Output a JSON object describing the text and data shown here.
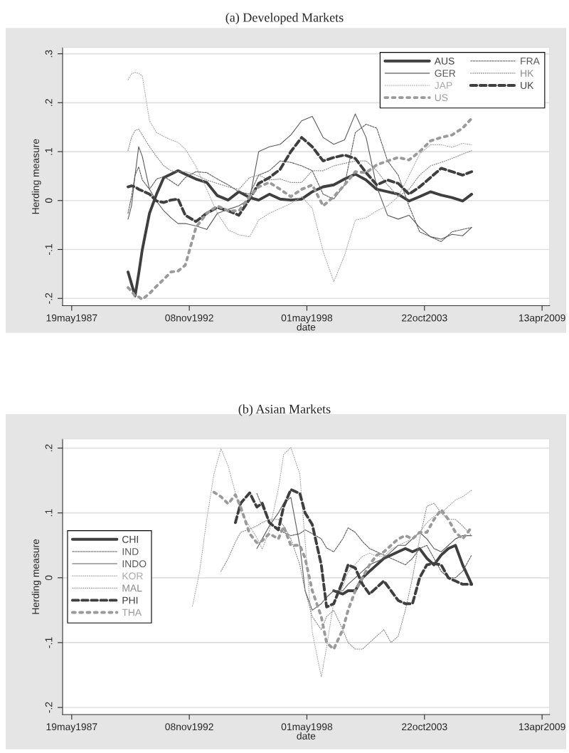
{
  "chart_data": [
    {
      "type": "line",
      "title": "(a) Developed Markets",
      "xlabel": "date",
      "ylabel": "Herding measure",
      "x": [
        "1990-01",
        "1990-03",
        "1990-05",
        "1990-07",
        "1990-09",
        "1991-01",
        "1991-05",
        "1991-09",
        "1992-01",
        "1992-05",
        "1992-09",
        "1993-03",
        "1993-09",
        "1994-03",
        "1994-09",
        "1995-03",
        "1995-09",
        "1996-02",
        "1996-08",
        "1997-02",
        "1997-08",
        "1998-02",
        "1998-08",
        "1999-02",
        "1999-08",
        "2000-02",
        "2000-08",
        "2001-02",
        "2001-08",
        "2002-02",
        "2002-08",
        "2003-02",
        "2003-08",
        "2004-02",
        "2004-08",
        "2005-02",
        "2005-08",
        "2006-01"
      ],
      "series": [
        {
          "name": "AUS",
          "color": "#3f3f3f",
          "line_style": "solid",
          "values": [
            -0.146,
            -0.17,
            -0.195,
            -0.15,
            -0.1,
            -0.026,
            0.013,
            0.047,
            0.054,
            0.061,
            0.054,
            0.044,
            0.037,
            0.01,
            0.001,
            0.018,
            0.006,
            0.001,
            0.013,
            0.003,
            0.001,
            0.003,
            0.018,
            0.028,
            0.032,
            0.044,
            0.054,
            0.042,
            0.023,
            0.018,
            0.013,
            -0.001,
            0.008,
            0.018,
            0.011,
            0.006,
            -0.001,
            0.013
          ]
        },
        {
          "name": "FRA",
          "color": "#5a5a5a",
          "line_style": "dashed",
          "values": [
            -0.026,
            0.008,
            0.052,
            0.069,
            0.042,
            0.023,
            0.044,
            0.049,
            0.04,
            0.03,
            0.047,
            0.059,
            0.057,
            0.044,
            0.032,
            0.018,
            0.013,
            0.052,
            0.061,
            0.081,
            0.078,
            0.071,
            0.061,
            0.013,
            0.003,
            0.032,
            0.139,
            0.156,
            0.148,
            0.081,
            0.052,
            -0.011,
            -0.064,
            -0.074,
            -0.084,
            -0.064,
            -0.059,
            -0.055
          ]
        },
        {
          "name": "GER",
          "color": "#5a5a5a",
          "line_style": "solid",
          "values": [
            -0.038,
            -0.011,
            0.052,
            0.11,
            0.09,
            0.023,
            -0.001,
            -0.021,
            -0.035,
            -0.047,
            -0.047,
            -0.052,
            -0.059,
            -0.026,
            -0.018,
            -0.011,
            0.003,
            0.1,
            0.11,
            0.115,
            0.134,
            0.163,
            0.172,
            0.129,
            0.115,
            0.124,
            0.177,
            0.129,
            0.028,
            -0.03,
            -0.038,
            -0.03,
            -0.055,
            -0.074,
            -0.079,
            -0.069,
            -0.072,
            -0.055
          ]
        },
        {
          "name": "HK",
          "color": "#888888",
          "line_style": "dotted",
          "values": [
            0.102,
            0.129,
            0.143,
            0.146,
            0.134,
            0.11,
            0.09,
            0.071,
            0.061,
            0.059,
            0.059,
            0.052,
            0.042,
            0.035,
            0.028,
            0.023,
            0.047,
            0.052,
            0.042,
            0.044,
            0.037,
            0.037,
            0.061,
            0.061,
            0.071,
            0.076,
            0.081,
            0.081,
            0.061,
            0.032,
            0.008,
            0.023,
            0.052,
            0.071,
            0.078,
            0.086,
            0.095,
            0.102
          ]
        },
        {
          "name": "JAP",
          "color": "#aaaaaa",
          "line_style": "dotted",
          "values": [
            0.247,
            0.259,
            0.262,
            0.26,
            0.255,
            0.163,
            0.139,
            0.131,
            0.124,
            0.119,
            0.105,
            0.07,
            0.023,
            -0.026,
            -0.06,
            -0.07,
            -0.074,
            -0.04,
            -0.026,
            -0.016,
            -0.006,
            0.008,
            -0.016,
            -0.104,
            -0.166,
            -0.112,
            -0.04,
            -0.035,
            -0.021,
            -0.011,
            0.008,
            0.051,
            0.095,
            0.114,
            0.114,
            0.109,
            0.117,
            0.114
          ]
        },
        {
          "name": "UK",
          "color": "#3f3f3f",
          "line_style": "dashed",
          "values": [
            0.028,
            0.03,
            0.028,
            0.023,
            0.02,
            0.013,
            -0.001,
            -0.004,
            0.001,
            0.003,
            -0.03,
            -0.043,
            -0.026,
            -0.014,
            -0.021,
            -0.03,
            0.003,
            0.035,
            0.047,
            0.064,
            0.1,
            0.129,
            0.11,
            0.081,
            0.088,
            0.093,
            0.086,
            0.057,
            0.032,
            0.042,
            0.035,
            0.013,
            0.028,
            0.047,
            0.066,
            0.059,
            0.052,
            0.059
          ]
        },
        {
          "name": "US",
          "color": "#9a9a9a",
          "line_style": "dotted",
          "values": [
            -0.178,
            -0.185,
            -0.195,
            -0.197,
            -0.202,
            -0.19,
            -0.175,
            -0.161,
            -0.146,
            -0.144,
            -0.132,
            -0.055,
            -0.026,
            -0.011,
            -0.021,
            -0.021,
            0.008,
            0.028,
            0.037,
            0.023,
            0.008,
            0.023,
            0.032,
            -0.011,
            0.008,
            0.032,
            0.059,
            0.057,
            0.073,
            0.081,
            0.088,
            0.083,
            0.1,
            0.122,
            0.129,
            0.134,
            0.148,
            0.168
          ]
        }
      ],
      "xlim": [
        "1986-12-15",
        "2009-08-20"
      ],
      "xticks": [
        {
          "value": "1987-05-19",
          "label": "19may1987"
        },
        {
          "value": "1992-11-08",
          "label": "08nov1992"
        },
        {
          "value": "1998-05-01",
          "label": "01may1998"
        },
        {
          "value": "2003-10-22",
          "label": "22oct2003"
        },
        {
          "value": "2009-04-13",
          "label": "13apr2009"
        }
      ],
      "ylim": [
        -0.215,
        0.313
      ],
      "yticks": [
        {
          "value": -0.2,
          "label": "-.2"
        },
        {
          "value": -0.1,
          "label": "-.1"
        },
        0,
        {
          "value": 0.1,
          "label": ".1"
        },
        {
          "value": 0.2,
          "label": ".2"
        },
        {
          "value": 0.3,
          "label": ".3"
        }
      ],
      "grid": "y",
      "legend": "top right"
    },
    {
      "type": "line",
      "title": "(b) Asian Markets",
      "xlabel": "date",
      "ylabel": "Herding measure",
      "x": [
        "1993-01",
        "1993-05",
        "1993-09",
        "1994-01",
        "1994-05",
        "1994-09",
        "1995-01",
        "1995-04",
        "1995-09",
        "1996-01",
        "1996-04",
        "1996-08",
        "1997-01",
        "1997-04",
        "1997-08",
        "1998-01",
        "1998-04",
        "1998-08",
        "1999-01",
        "1999-04",
        "1999-08",
        "2000-01",
        "2000-04",
        "2000-08",
        "2000-12",
        "2001-04",
        "2001-08",
        "2001-12",
        "2002-04",
        "2002-08",
        "2002-12",
        "2003-04",
        "2003-08",
        "2003-12",
        "2004-04",
        "2004-08",
        "2004-12",
        "2005-04",
        "2005-08",
        "2006-01"
      ],
      "series": [
        {
          "name": "CHI",
          "color": "#3f3f3f",
          "line_style": "solid",
          "values": [
            null,
            null,
            null,
            null,
            null,
            null,
            null,
            null,
            null,
            null,
            null,
            null,
            null,
            null,
            null,
            null,
            null,
            null,
            null,
            null,
            -0.02,
            -0.025,
            -0.02,
            -0.02,
            0.0,
            0.01,
            0.02,
            0.03,
            0.035,
            0.04,
            0.045,
            0.04,
            0.045,
            0.03,
            0.02,
            0.035,
            0.045,
            0.05,
            0.02,
            -0.01
          ]
        },
        {
          "name": "IND",
          "color": "#5a5a5a",
          "line_style": "dashed",
          "values": [
            null,
            null,
            null,
            null,
            null,
            null,
            null,
            null,
            null,
            0.13,
            0.11,
            0.085,
            0.075,
            0.07,
            0.065,
            0.068,
            0.074,
            0.068,
            0.06,
            0.046,
            0.04,
            0.06,
            0.077,
            0.07,
            0.056,
            0.045,
            0.04,
            0.035,
            0.03,
            0.025,
            0.02,
            0.03,
            0.045,
            0.05,
            0.03,
            0.01,
            0.0,
            0.0,
            0.01,
            0.035
          ]
        },
        {
          "name": "INDO",
          "color": "#5a5a5a",
          "line_style": "solid",
          "values": [
            null,
            null,
            null,
            null,
            null,
            null,
            null,
            null,
            null,
            0.045,
            0.06,
            0.08,
            0.1,
            0.115,
            0.124,
            0.05,
            -0.02,
            -0.05,
            -0.04,
            -0.03,
            -0.02,
            -0.02,
            -0.01,
            0.0,
            0.01,
            0.02,
            0.025,
            0.03,
            0.04,
            0.05,
            0.05,
            0.06,
            0.07,
            0.06,
            0.045,
            0.04,
            0.05,
            0.06,
            0.065,
            0.065
          ]
        },
        {
          "name": "KOR",
          "color": "#aaaaaa",
          "line_style": "dotted",
          "values": [
            -0.044,
            0.009,
            0.09,
            0.16,
            0.199,
            0.172,
            0.131,
            0.102,
            0.079,
            0.062,
            0.044,
            0.073,
            0.137,
            0.19,
            0.201,
            0.16,
            0.056,
            -0.084,
            -0.153,
            -0.107,
            -0.037,
            -0.014,
            0.009,
            0.021,
            0.033,
            0.038,
            0.033,
            0.033,
            0.044,
            0.05,
            0.055,
            0.06,
            0.07,
            0.085,
            0.095,
            0.1,
            0.11,
            0.12,
            0.125,
            0.135
          ]
        },
        {
          "name": "MAL",
          "color": "#888888",
          "line_style": "dotted",
          "values": [
            null,
            null,
            null,
            null,
            0.01,
            0.03,
            0.055,
            0.07,
            0.075,
            0.08,
            0.085,
            0.09,
            0.09,
            0.08,
            0.06,
            0.02,
            -0.02,
            -0.06,
            -0.08,
            -0.06,
            -0.05,
            -0.08,
            -0.1,
            -0.11,
            -0.11,
            -0.1,
            -0.09,
            -0.08,
            -0.1,
            -0.09,
            -0.05,
            0.0,
            0.06,
            0.11,
            0.115,
            0.1,
            0.09,
            0.09,
            0.08,
            0.065
          ]
        },
        {
          "name": "PHI",
          "color": "#3f3f3f",
          "line_style": "dashed",
          "values": [
            null,
            null,
            null,
            null,
            null,
            null,
            0.085,
            0.115,
            0.131,
            0.109,
            0.115,
            0.085,
            0.074,
            0.11,
            0.136,
            0.13,
            0.1,
            0.082,
            0.02,
            -0.045,
            -0.04,
            -0.005,
            0.02,
            0.015,
            -0.01,
            -0.025,
            -0.015,
            -0.005,
            -0.02,
            -0.035,
            -0.04,
            -0.04,
            0.0,
            0.02,
            0.022,
            0.02,
            0.0,
            -0.005,
            -0.01,
            -0.01
          ]
        },
        {
          "name": "THA",
          "color": "#9a9a9a",
          "line_style": "dotted",
          "values": [
            null,
            null,
            null,
            0.132,
            0.125,
            0.114,
            0.128,
            0.109,
            0.068,
            0.054,
            0.057,
            0.068,
            0.06,
            0.079,
            0.05,
            0.05,
            0.03,
            -0.02,
            -0.06,
            -0.1,
            -0.11,
            -0.08,
            -0.05,
            -0.02,
            0.0,
            0.02,
            0.035,
            0.04,
            0.05,
            0.06,
            0.065,
            0.06,
            0.07,
            0.07,
            0.09,
            0.105,
            0.09,
            0.07,
            0.06,
            0.078
          ]
        }
      ],
      "xlim": [
        "1986-12-15",
        "2009-08-20"
      ],
      "xticks": [
        {
          "value": "1987-05-19",
          "label": "19may1987"
        },
        {
          "value": "1992-11-08",
          "label": "08nov1992"
        },
        {
          "value": "1998-05-01",
          "label": "01may1998"
        },
        {
          "value": "2003-10-22",
          "label": "22oct2003"
        },
        {
          "value": "2009-04-13",
          "label": "13apr2009"
        }
      ],
      "ylim": [
        -0.211,
        0.214
      ],
      "yticks": [
        {
          "value": -0.2,
          "label": "-.2"
        },
        {
          "value": -0.1,
          "label": "-.1"
        },
        0,
        {
          "value": 0.1,
          "label": ".1"
        },
        {
          "value": 0.2,
          "label": ".2"
        }
      ],
      "grid": "y",
      "legend": "left"
    }
  ]
}
